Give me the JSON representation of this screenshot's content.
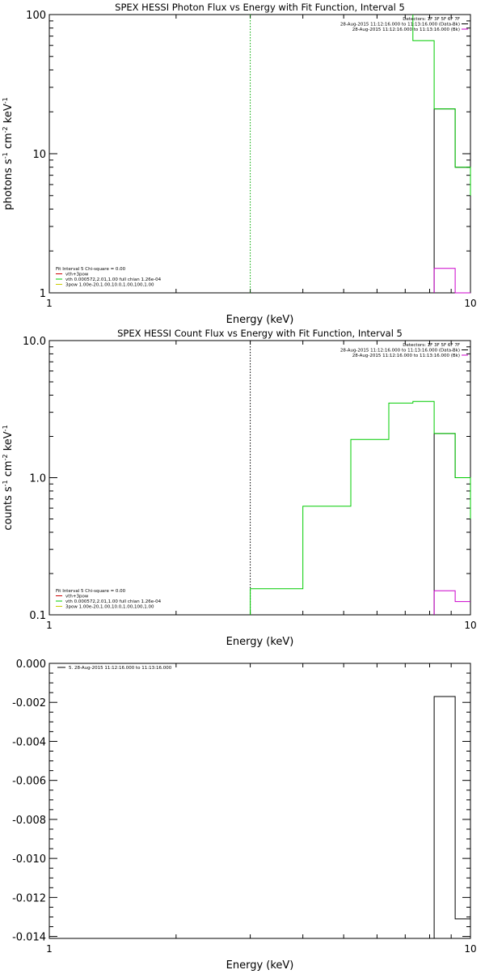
{
  "chart_data": [
    {
      "type": "line",
      "title": "SPEX HESSI Photon Flux vs Energy with Fit Function, Interval 5",
      "xlabel": "Energy (keV)",
      "ylabel_parts": [
        "photons s",
        "-1",
        " cm",
        "-2",
        " keV",
        "-1"
      ],
      "x_scale": "log",
      "y_scale": "log",
      "xlim": [
        1,
        10
      ],
      "ylim": [
        1,
        100
      ],
      "x_ticks": [
        {
          "value": 1,
          "label": "1"
        },
        {
          "value": 10,
          "label": "10"
        }
      ],
      "y_ticks": [
        {
          "value": 1,
          "label": "1"
        },
        {
          "value": 10,
          "label": "10"
        },
        {
          "value": 100,
          "label": "100"
        }
      ],
      "legend_top": [
        "Detectors: 1F 3F 5F 6F 7F",
        "28-Aug-2015 11:12:16.000 to 11:13:16.000 (Data-Bk)",
        "28-Aug-2015 11:12:16.000 to 11:13:16.000 (Bk)"
      ],
      "legend_top_colors": [
        "",
        "#000000",
        "#cc00cc"
      ],
      "legend_bottom": [
        "Fit Interval 5   Chi-square = 0.00",
        "vth+3pow",
        "vth 0.000572,2.01,1.00  full chian 1.26e-04",
        "3pow 1.00e-20,1.00,10.0,1.00,100,1.00"
      ],
      "legend_bottom_colors": [
        "",
        "#cc0000",
        "#00cc00",
        "#cccc00"
      ],
      "vline": {
        "x": 3.0,
        "color": "#00aa00"
      },
      "series": [
        {
          "color": "#000000",
          "step_x": [
            8.2,
            8.2,
            9.2,
            9.2,
            10
          ],
          "step_y": [
            1,
            21,
            21,
            8,
            8
          ]
        },
        {
          "color": "#cc00cc",
          "step_x": [
            8.2,
            8.2,
            9.2,
            9.2,
            10
          ],
          "step_y": [
            1,
            1.5,
            1.5,
            0.98,
            0.98
          ]
        },
        {
          "color": "#00cc00",
          "step_x": [
            7.3,
            7.3,
            8.2,
            8.2,
            9.2,
            9.2,
            10,
            10
          ],
          "step_y": [
            100,
            65,
            65,
            21,
            21,
            8,
            8,
            5
          ]
        }
      ]
    },
    {
      "type": "line",
      "title": "SPEX HESSI Count Flux vs Energy with Fit Function, Interval 5",
      "xlabel": "Energy (keV)",
      "ylabel_parts": [
        "counts s",
        "-1",
        " cm",
        "-2",
        " keV",
        "-1"
      ],
      "x_scale": "log",
      "y_scale": "log",
      "xlim": [
        1,
        10
      ],
      "ylim": [
        0.1,
        10
      ],
      "x_ticks": [
        {
          "value": 1,
          "label": "1"
        },
        {
          "value": 10,
          "label": "10"
        }
      ],
      "y_ticks": [
        {
          "value": 0.1,
          "label": "0.1"
        },
        {
          "value": 1,
          "label": "1.0"
        },
        {
          "value": 10,
          "label": "10.0"
        }
      ],
      "legend_top": [
        "Detectors: 1F 3F 5F 6F 7F",
        "28-Aug-2015 11:12:16.000 to 11:13:16.000 (Data-Bk)",
        "28-Aug-2015 11:12:16.000 to 11:13:16.000 (Bk)"
      ],
      "legend_top_colors": [
        "",
        "#000000",
        "#cc00cc"
      ],
      "legend_bottom": [
        "Fit Interval 5   Chi-square = 0.00",
        "vth+3pow",
        "vth 0.000572,2.01,1.00  full chian 1.26e-04",
        "3pow 1.00e-20,1.00,10.0,1.00,100,1.00"
      ],
      "legend_bottom_colors": [
        "",
        "#cc0000",
        "#00cc00",
        "#cccc00"
      ],
      "vline": {
        "x": 3.0,
        "color": "#000000"
      },
      "series": [
        {
          "color": "#000000",
          "step_x": [
            8.2,
            8.2,
            9.2,
            9.2,
            10
          ],
          "step_y": [
            0.1,
            2.1,
            2.1,
            1.0,
            1.0
          ]
        },
        {
          "color": "#cc00cc",
          "step_x": [
            8.2,
            8.2,
            9.2,
            9.2,
            10
          ],
          "step_y": [
            0.1,
            0.15,
            0.15,
            0.125,
            0.125
          ]
        },
        {
          "color": "#00cc00",
          "step_x": [
            3.0,
            3.0,
            4.0,
            4.0,
            5.2,
            5.2,
            6.4,
            6.4,
            7.3,
            7.3,
            8.2,
            8.2,
            9.2,
            9.2,
            10,
            10
          ],
          "step_y": [
            0.1,
            0.155,
            0.155,
            0.62,
            0.62,
            1.9,
            1.9,
            3.5,
            3.5,
            3.6,
            3.6,
            2.1,
            2.1,
            1.0,
            1.0,
            0.5
          ]
        }
      ]
    },
    {
      "type": "line",
      "title": "",
      "xlabel": "Energy (keV)",
      "x_scale": "log",
      "y_scale": "linear",
      "xlim": [
        1,
        10
      ],
      "ylim": [
        -0.0141,
        0.0
      ],
      "x_ticks": [
        {
          "value": 1,
          "label": "1"
        },
        {
          "value": 10,
          "label": "10"
        }
      ],
      "y_ticks": [
        {
          "value": 0,
          "label": "0.000"
        },
        {
          "value": -0.002,
          "label": "-0.002"
        },
        {
          "value": -0.004,
          "label": "-0.004"
        },
        {
          "value": -0.006,
          "label": "-0.006"
        },
        {
          "value": -0.008,
          "label": "-0.008"
        },
        {
          "value": -0.01,
          "label": "-0.010"
        },
        {
          "value": -0.012,
          "label": "-0.012"
        },
        {
          "value": -0.014,
          "label": "-0.014"
        }
      ],
      "legend_top": [
        "5. 28-Aug-2015 11:12:16.000 to 11:13:16.000"
      ],
      "legend_top_colors": [
        "#000000"
      ],
      "series": [
        {
          "color": "#000000",
          "step_x": [
            8.2,
            8.2,
            9.2,
            9.2,
            10
          ],
          "step_y": [
            -0.0141,
            -0.0017,
            -0.0017,
            -0.0131,
            -0.0131
          ]
        }
      ]
    }
  ]
}
